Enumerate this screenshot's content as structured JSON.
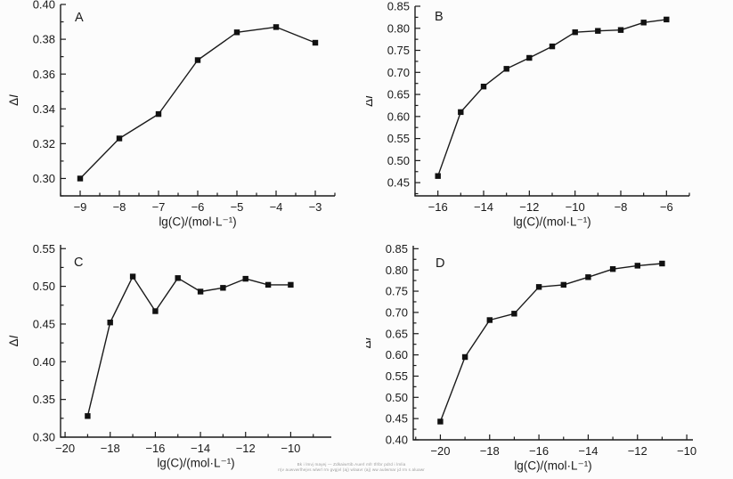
{
  "figure": {
    "background": "#fcfcfc",
    "axis_color": "#1a1a1a",
    "marker_color": "#111111",
    "line_color": "#1a1a1a"
  },
  "watermark": {
    "line1": "Bk i lmvj mayej — Zdkaiwrtib.Auerl mfr tfrlbr pdrd i lmlia",
    "line2": "rrjv auwvwrlhejvs wlwrl rm gvgjvl (aj) wlaavr (aj) ww aulwmar jd rm s aluawr amlgv"
  },
  "chart_data": [
    {
      "type": "line",
      "panel_label": "A",
      "xlabel": "lg(C)/(mol·L⁻¹)",
      "ylabel_regular": "Δ",
      "ylabel_italic": "I",
      "x": [
        -9,
        -8,
        -7,
        -6,
        -5,
        -4,
        -3
      ],
      "y": [
        0.3,
        0.323,
        0.337,
        0.368,
        0.384,
        0.387,
        0.378
      ],
      "xlim": [
        -9.5,
        -2.5
      ],
      "ylim": [
        0.29,
        0.4
      ],
      "xticks": [
        -9,
        -8,
        -7,
        -6,
        -5,
        -4,
        -3
      ],
      "xminor": 0.5,
      "yticks": [
        0.3,
        0.32,
        0.34,
        0.36,
        0.38,
        0.4
      ],
      "yminor": 0.01,
      "marker": "square",
      "grid": false
    },
    {
      "type": "line",
      "panel_label": "B",
      "xlabel": "lg(C)/(mol·L⁻¹)",
      "ylabel_regular": "Δ",
      "ylabel_italic": "I",
      "x": [
        -16,
        -15,
        -14,
        -13,
        -12,
        -11,
        -10,
        -9,
        -8,
        -7,
        -6
      ],
      "y": [
        0.465,
        0.61,
        0.668,
        0.708,
        0.733,
        0.759,
        0.791,
        0.794,
        0.796,
        0.813,
        0.82
      ],
      "xlim": [
        -17,
        -5
      ],
      "ylim": [
        0.42,
        0.85
      ],
      "xticks": [
        -16,
        -14,
        -12,
        -10,
        -8,
        -6
      ],
      "xminor": 1,
      "yticks": [
        0.45,
        0.5,
        0.55,
        0.6,
        0.65,
        0.7,
        0.75,
        0.8,
        0.85
      ],
      "yminor": 0.025,
      "marker": "square",
      "grid": false
    },
    {
      "type": "line",
      "panel_label": "C",
      "xlabel": "lg(C)/(mol·L⁻¹)",
      "ylabel_regular": "Δ",
      "ylabel_italic": "I",
      "x": [
        -19,
        -18,
        -17,
        -16,
        -15,
        -14,
        -13,
        -12,
        -11,
        -10
      ],
      "y": [
        0.328,
        0.452,
        0.513,
        0.467,
        0.511,
        0.493,
        0.498,
        0.51,
        0.502,
        0.502
      ],
      "xlim": [
        -20.2,
        -8.2
      ],
      "ylim": [
        0.3,
        0.555
      ],
      "xticks": [
        -20,
        -18,
        -16,
        -14,
        -12,
        -10
      ],
      "xminor": 1,
      "yticks": [
        0.3,
        0.35,
        0.4,
        0.45,
        0.5,
        0.55
      ],
      "yminor": 0.025,
      "marker": "square",
      "grid": false
    },
    {
      "type": "line",
      "panel_label": "D",
      "xlabel": "lg(C)/(mol·L⁻¹)",
      "ylabel_regular": "Δ",
      "ylabel_italic": "I",
      "x": [
        -20,
        -19,
        -18,
        -17,
        -16,
        -15,
        -14,
        -13,
        -12,
        -11
      ],
      "y": [
        0.443,
        0.595,
        0.682,
        0.697,
        0.76,
        0.765,
        0.783,
        0.802,
        0.81,
        0.815
      ],
      "xlim": [
        -21.1,
        -9.75
      ],
      "ylim": [
        0.4,
        0.857
      ],
      "xticks": [
        -20,
        -18,
        -16,
        -14,
        -12,
        -10
      ],
      "xminor": 1,
      "yticks": [
        0.4,
        0.45,
        0.5,
        0.55,
        0.6,
        0.65,
        0.7,
        0.75,
        0.8,
        0.85
      ],
      "yminor": 0.025,
      "marker": "square",
      "grid": false
    }
  ]
}
